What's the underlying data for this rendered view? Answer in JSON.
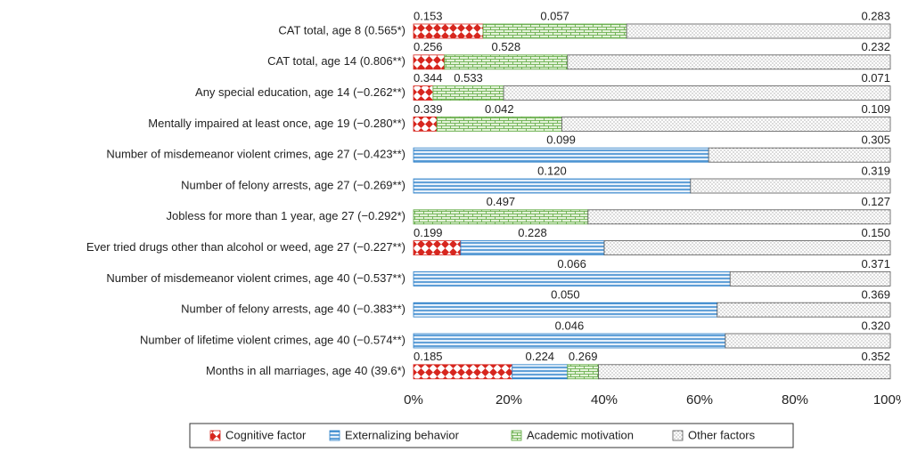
{
  "chart_data": {
    "type": "stacked-bar-horizontal",
    "categories": [
      "CAT total, age 8 (0.565*)",
      "CAT total, age 14 (0.806**)",
      "Any special education, age 14 (−0.262**)",
      "Mentally impaired at least once, age 19 (−0.280**)",
      "Number of misdemeanor violent crimes, age 27 (−0.423**)",
      "Number of felony arrests, age 27 (−0.269**)",
      "Jobless for more than 1 year, age 27 (−0.292*)",
      "Ever tried drugs other than alcohol or weed, age 27 (−0.227**)",
      "Number of misdemeanor violent crimes, age 40 (−0.537**)",
      "Number of felony arrests, age 40 (−0.383**)",
      "Number of lifetime violent crimes, age 40 (−0.574**)",
      "Months in all marriages, age 40 (39.6*)"
    ],
    "series": [
      {
        "name": "Cognitive factor",
        "color": "#d7261e",
        "pattern": "diamonds",
        "values": [
          14.6,
          6.5,
          4.1,
          4.9,
          null,
          null,
          null,
          9.9,
          null,
          null,
          null,
          20.7
        ],
        "segment_labels": [
          "0.153",
          "0.256",
          "0.344",
          "0.339",
          null,
          null,
          null,
          "0.199",
          null,
          null,
          null,
          "0.185"
        ]
      },
      {
        "name": "Externalizing behavior",
        "color": "#2a7fc9",
        "pattern": "stripes",
        "values": [
          null,
          null,
          null,
          null,
          61.9,
          58.1,
          null,
          30.1,
          66.4,
          63.7,
          65.4,
          11.6
        ],
        "segment_labels": [
          null,
          null,
          null,
          null,
          "0.099",
          "0.120",
          null,
          "0.228",
          "0.066",
          "0.050",
          "0.046",
          "0.224"
        ]
      },
      {
        "name": "Academic motivation",
        "color": "#5aa63c",
        "pattern": "bricks",
        "values": [
          30.1,
          25.8,
          14.8,
          26.2,
          null,
          null,
          36.6,
          null,
          null,
          null,
          null,
          6.5
        ],
        "segment_labels": [
          "0.057",
          "0.528",
          "0.533",
          "0.042",
          null,
          null,
          "0.497",
          null,
          null,
          null,
          null,
          "0.269"
        ]
      },
      {
        "name": "Other factors",
        "color": "#555555",
        "pattern": "dots",
        "values": [
          55.3,
          67.7,
          81.1,
          68.9,
          38.1,
          41.9,
          63.4,
          60.0,
          33.6,
          36.3,
          34.6,
          61.2
        ],
        "segment_labels": [
          "0.283",
          "0.232",
          "0.071",
          "0.109",
          "0.305",
          "0.319",
          "0.127",
          "0.150",
          "0.371",
          "0.369",
          "0.320",
          "0.352"
        ]
      }
    ],
    "xlim": [
      0,
      100
    ],
    "xticks": [
      {
        "value": 0,
        "label": "0%"
      },
      {
        "value": 20,
        "label": "20%"
      },
      {
        "value": 40,
        "label": "40%"
      },
      {
        "value": 60,
        "label": "60%"
      },
      {
        "value": 80,
        "label": "80%"
      },
      {
        "value": 100,
        "label": "100%"
      }
    ],
    "legend": "bottom"
  }
}
